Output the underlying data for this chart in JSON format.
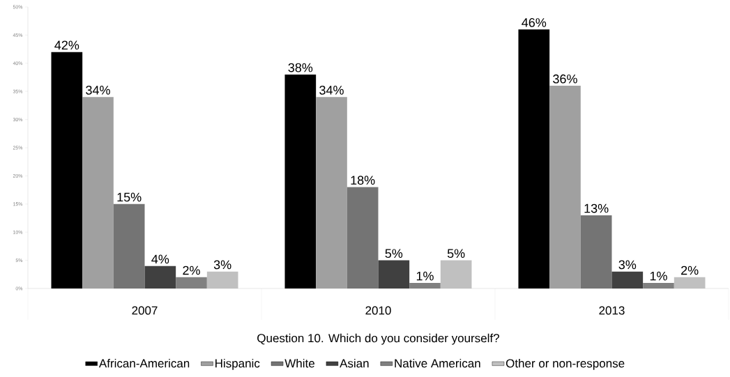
{
  "chart_data": {
    "type": "bar",
    "xlabel": "Question 10. Which do you consider yourself?",
    "categories": [
      "2007",
      "2010",
      "2013"
    ],
    "series": [
      {
        "name": "African-American",
        "color": "#000000",
        "values": [
          42,
          38,
          46
        ],
        "value_labels": [
          "42%",
          "38%",
          "46%"
        ]
      },
      {
        "name": "Hispanic",
        "color": "#a0a0a0",
        "values": [
          34,
          34,
          36
        ],
        "value_labels": [
          "34%",
          "34%",
          "36%"
        ]
      },
      {
        "name": "White",
        "color": "#747474",
        "values": [
          15,
          18,
          13
        ],
        "value_labels": [
          "15%",
          "18%",
          "13%"
        ]
      },
      {
        "name": "Asian",
        "color": "#404040",
        "values": [
          4,
          5,
          3
        ],
        "value_labels": [
          "4%",
          "5%",
          "3%"
        ]
      },
      {
        "name": "Native American",
        "color": "#808080",
        "values": [
          2,
          1,
          1
        ],
        "value_labels": [
          "2%",
          "1%",
          "1%"
        ]
      },
      {
        "name": "Other or non-response",
        "color": "#c0c0c0",
        "values": [
          3,
          5,
          2
        ],
        "value_labels": [
          "3%",
          "5%",
          "2%"
        ]
      }
    ],
    "ylim": [
      0,
      50
    ],
    "yticks": [
      {
        "value": 0,
        "label": "0%"
      },
      {
        "value": 5,
        "label": "5%"
      },
      {
        "value": 10,
        "label": "10%"
      },
      {
        "value": 15,
        "label": "15%"
      },
      {
        "value": 20,
        "label": "20%"
      },
      {
        "value": 25,
        "label": "25%"
      },
      {
        "value": 30,
        "label": "30%"
      },
      {
        "value": 35,
        "label": "35%"
      },
      {
        "value": 40,
        "label": "40%"
      },
      {
        "value": 45,
        "label": "45%"
      },
      {
        "value": 50,
        "label": "50%"
      }
    ],
    "grid": false,
    "legend": "bottom"
  }
}
